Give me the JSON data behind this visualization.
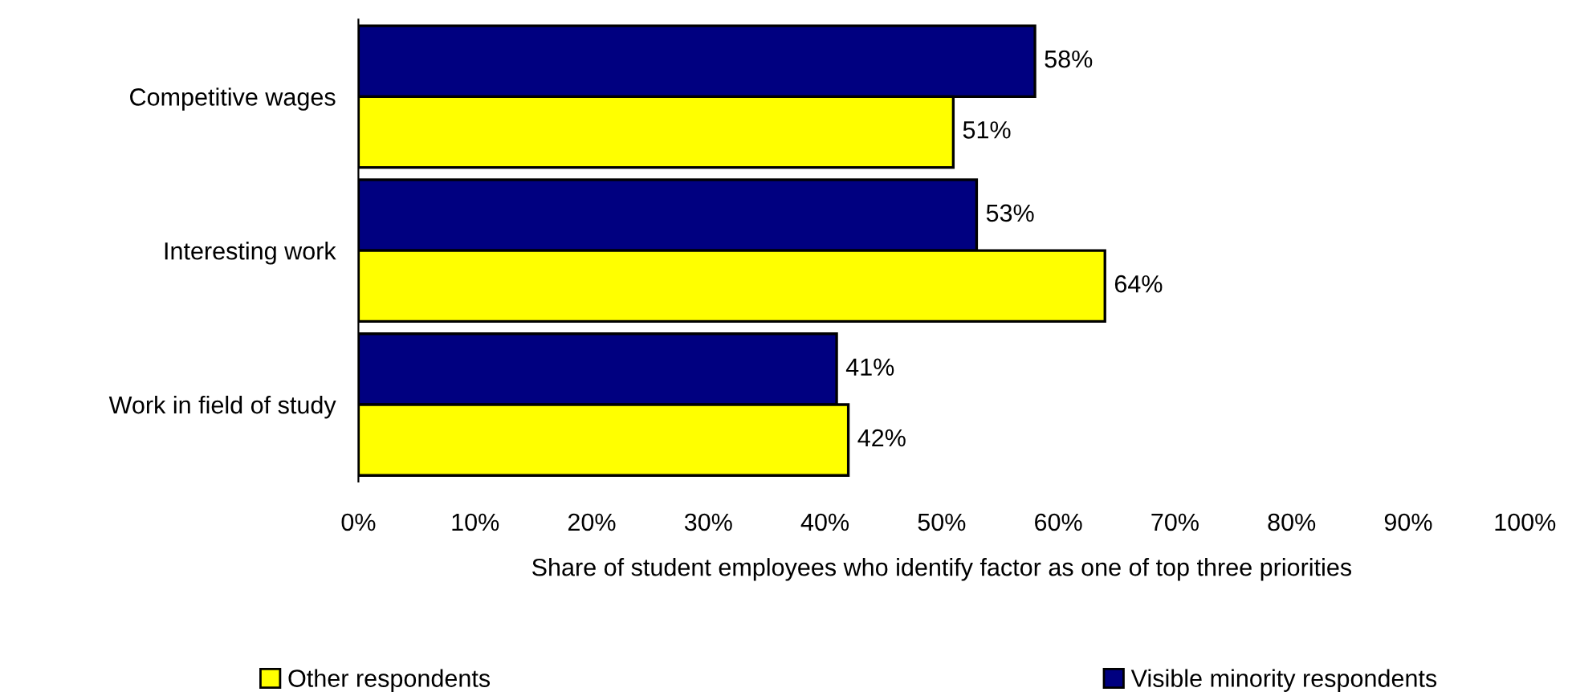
{
  "chart_data": {
    "type": "bar",
    "orientation": "horizontal",
    "xlabel": "Share of student employees who identify factor as one of top three priorities",
    "categories": [
      "Competitive wages",
      "Interesting work",
      "Work in field of study"
    ],
    "series": [
      {
        "name": "Visible minority respondents",
        "color": "#000080",
        "values": [
          58,
          53,
          41
        ],
        "value_labels": [
          "58%",
          "53%",
          "41%"
        ]
      },
      {
        "name": "Other respondents",
        "color": "#ffff00",
        "values": [
          51,
          64,
          42
        ],
        "value_labels": [
          "51%",
          "64%",
          "42%"
        ]
      }
    ],
    "xlim": [
      0,
      100
    ],
    "xticks": [
      {
        "value": 0,
        "label": "0%"
      },
      {
        "value": 10,
        "label": "10%"
      },
      {
        "value": 20,
        "label": "20%"
      },
      {
        "value": 30,
        "label": "30%"
      },
      {
        "value": 40,
        "label": "40%"
      },
      {
        "value": 50,
        "label": "50%"
      },
      {
        "value": 60,
        "label": "60%"
      },
      {
        "value": 70,
        "label": "70%"
      },
      {
        "value": 80,
        "label": "80%"
      },
      {
        "value": 90,
        "label": "90%"
      },
      {
        "value": 100,
        "label": "100%"
      }
    ],
    "grid": false,
    "legend": "bottom"
  }
}
